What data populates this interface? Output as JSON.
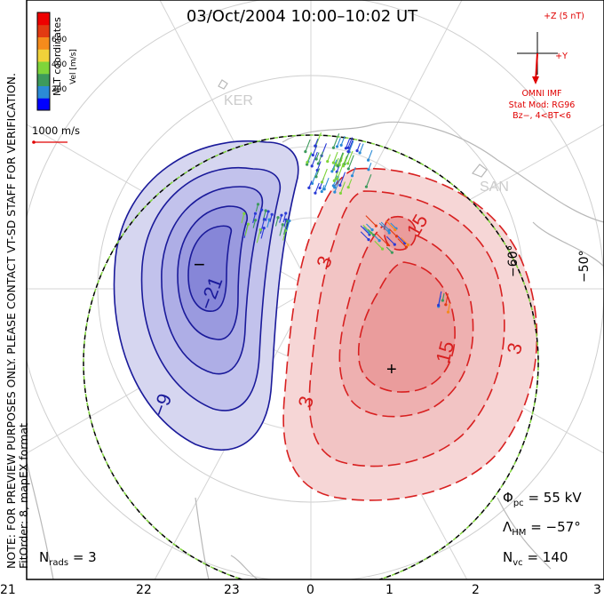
{
  "title": "03/Oct/2004 10:00–10:02 UT",
  "notice_line1": "NOTE: FOR PREVIEW PURPOSES ONLY. PLEASE CONTACT VT-SD STAFF FOR VERIFICATION.",
  "notice_line2": "FitOrder: 8, mapEX format",
  "coords_label": "MLT coordinates",
  "color_scale": {
    "unit_label": "Vel [m/s]",
    "ticks": [
      "600",
      "400",
      "200"
    ],
    "colors": [
      "#0000ff",
      "#2b8bd6",
      "#3d9a5c",
      "#7fd43a",
      "#f0d23a",
      "#f58b1c",
      "#e23a12",
      "#ee0000"
    ]
  },
  "vector_scale_label": "1000 m/s",
  "imf": {
    "z_label": "+Z (5 nT)",
    "y_label": "+Y",
    "source": "OMNI IMF",
    "stat_model": "Stat Mod: RG96",
    "condition": "Bz−, 4<BT<6"
  },
  "stats": {
    "phi_symbol": "Φ",
    "phi_sub": "pc",
    "phi_value": "= 55 kV",
    "lambda_symbol": "Λ",
    "lambda_sub": "HM",
    "lambda_value": "= −57°",
    "nvc_symbol": "N",
    "nvc_sub": "vc",
    "nvc_value": "= 140",
    "nrads_symbol": "N",
    "nrads_sub": "rads",
    "nrads_value": "= 3"
  },
  "mlt_labels": [
    "21",
    "22",
    "23",
    "0",
    "1",
    "2",
    "3"
  ],
  "lat_labels": [
    "−60°",
    "−50°"
  ],
  "station_labels": [
    "KER",
    "SAN"
  ],
  "contour_labels": [
    "−21",
    "−9",
    "3",
    "15",
    "15",
    "3",
    "3"
  ],
  "extrema_markers": [
    "−",
    "+"
  ],
  "colors": {
    "positive_cell": "#e03030",
    "negative_cell": "#2a2aa0",
    "imf_red": "#e00000",
    "hm_boundary": "#7fd43a"
  }
}
